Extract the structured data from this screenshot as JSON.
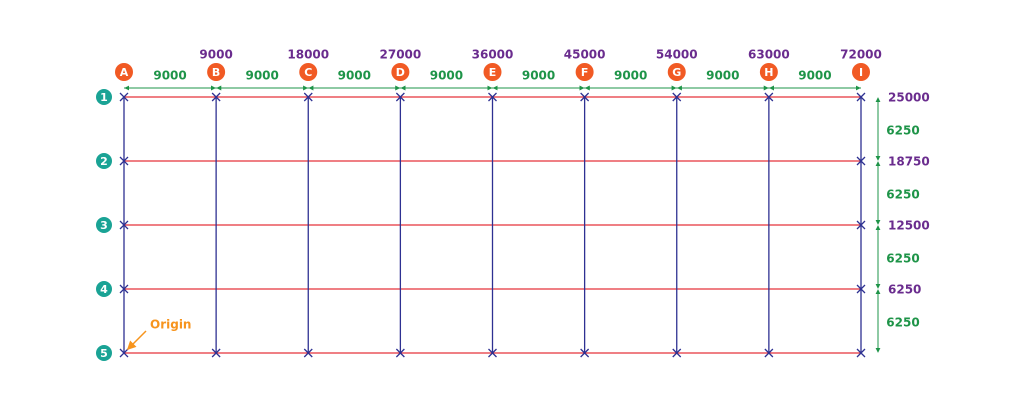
{
  "columns": [
    {
      "label": "A"
    },
    {
      "label": "B",
      "coordinate": 9000
    },
    {
      "label": "C",
      "coordinate": 18000
    },
    {
      "label": "D",
      "coordinate": 27000
    },
    {
      "label": "E",
      "coordinate": 36000
    },
    {
      "label": "F",
      "coordinate": 45000
    },
    {
      "label": "G",
      "coordinate": 54000
    },
    {
      "label": "H",
      "coordinate": 63000
    },
    {
      "label": "I",
      "coordinate": 72000
    }
  ],
  "column_spacings": [
    9000,
    9000,
    9000,
    9000,
    9000,
    9000,
    9000,
    9000
  ],
  "rows": [
    {
      "label": "1",
      "coordinate": 25000
    },
    {
      "label": "2",
      "coordinate": 18750
    },
    {
      "label": "3",
      "coordinate": 12500
    },
    {
      "label": "4",
      "coordinate": 6250
    },
    {
      "label": "5"
    }
  ],
  "row_spacings": [
    6250,
    6250,
    6250,
    6250
  ],
  "annotation": "Origin"
}
